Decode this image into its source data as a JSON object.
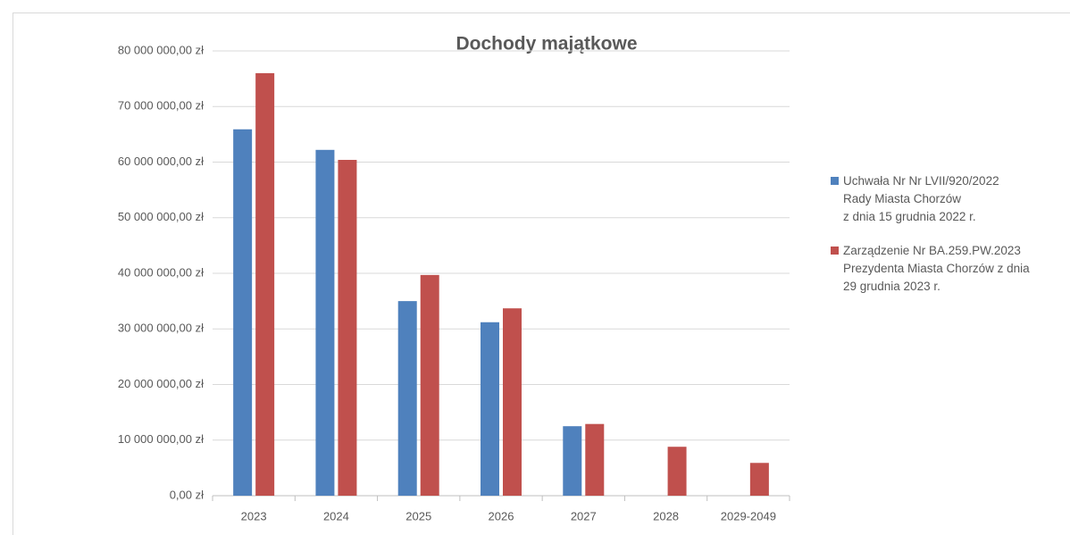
{
  "chart_data": {
    "type": "bar",
    "title": "Dochody majątkowe",
    "categories": [
      "2023",
      "2024",
      "2025",
      "2026",
      "2027",
      "2028",
      "2029-2049"
    ],
    "series": [
      {
        "name": "Uchwała Nr Nr LVII/920/2022\nRady Miasta Chorzów\nz dnia 15 grudnia 2022 r.",
        "color": "#4f81bd",
        "values": [
          65900000,
          62200000,
          35000000,
          31200000,
          12500000,
          null,
          null
        ]
      },
      {
        "name": "Zarządzenie Nr BA.259.PW.2023\nPrezydenta Miasta Chorzów z dnia\n29 grudnia 2023 r.",
        "color": "#c0504d",
        "values": [
          76000000,
          60400000,
          39700000,
          33700000,
          12900000,
          8800000,
          5900000
        ]
      }
    ],
    "ylim": [
      0,
      80000000
    ],
    "yticks": [
      {
        "value": 0,
        "label": "0,00 zł"
      },
      {
        "value": 10000000,
        "label": "10 000 000,00 zł"
      },
      {
        "value": 20000000,
        "label": "20 000 000,00 zł"
      },
      {
        "value": 30000000,
        "label": "30 000 000,00 zł"
      },
      {
        "value": 40000000,
        "label": "40 000 000,00 zł"
      },
      {
        "value": 50000000,
        "label": "50 000 000,00 zł"
      },
      {
        "value": 60000000,
        "label": "60 000 000,00 zł"
      },
      {
        "value": 70000000,
        "label": "70 000 000,00 zł"
      },
      {
        "value": 80000000,
        "label": "80 000 000,00 zł"
      }
    ],
    "grid": true,
    "legend": "right"
  }
}
